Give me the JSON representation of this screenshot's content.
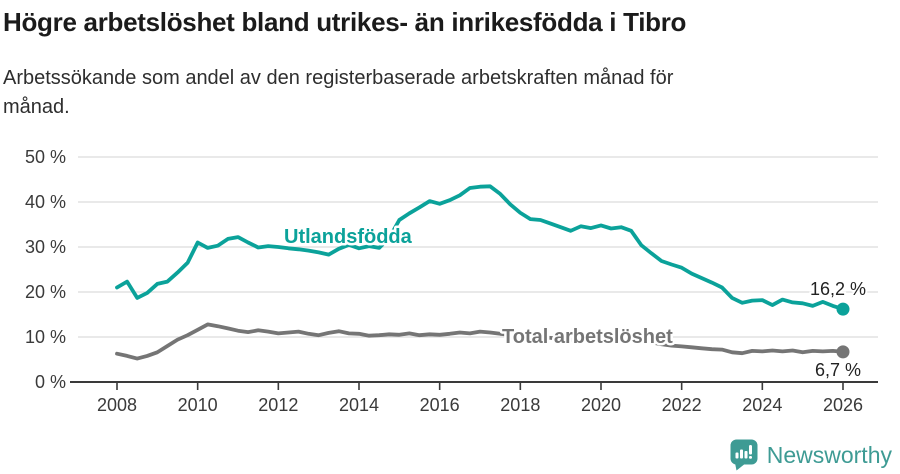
{
  "header": {
    "title": "Högre arbetslöshet bland utrikes- än inrikesfödda i Tibro",
    "subtitle_lines": [
      "Arbetssökande som andel av den registerbaserade arbetskraften månad för",
      "månad."
    ]
  },
  "chart_data": {
    "type": "line",
    "title": "",
    "xlabel": "",
    "ylabel": "",
    "y_unit": "%",
    "ylim": [
      0,
      50
    ],
    "grid": true,
    "x_start": 2008,
    "x_step": 0.25,
    "y_tick_values": [
      0,
      10,
      20,
      30,
      40,
      50
    ],
    "y_tick_labels": [
      "0 %",
      "10 %",
      "20 %",
      "30 %",
      "40 %",
      "50 %"
    ],
    "x_tick_labels": [
      "2008",
      "2010",
      "2012",
      "2014",
      "2016",
      "2018",
      "2020",
      "2022",
      "2024",
      "2026"
    ],
    "x_tick_values": [
      2008,
      2010,
      2012,
      2014,
      2016,
      2018,
      2020,
      2022,
      2024,
      2026
    ],
    "series": [
      {
        "name": "Utlandsfödda",
        "color": "#0ba29a",
        "end_value_label": "16,2 %",
        "values": [
          21.0,
          22.3,
          18.7,
          19.8,
          21.8,
          22.3,
          24.3,
          26.5,
          31.0,
          29.8,
          30.3,
          31.8,
          32.2,
          31.0,
          29.9,
          30.2,
          30.0,
          29.7,
          29.5,
          29.2,
          28.8,
          28.3,
          29.6,
          30.5,
          29.7,
          30.2,
          29.8,
          32.0,
          36.0,
          37.5,
          38.8,
          40.2,
          39.6,
          40.4,
          41.5,
          43.1,
          43.4,
          43.5,
          41.8,
          39.5,
          37.6,
          36.2,
          36.0,
          35.2,
          34.4,
          33.6,
          34.6,
          34.2,
          34.8,
          34.1,
          34.4,
          33.6,
          30.4,
          28.6,
          26.9,
          26.1,
          25.4,
          24.1,
          23.1,
          22.1,
          21.0,
          18.7,
          17.6,
          18.1,
          18.2,
          17.1,
          18.3,
          17.7,
          17.5,
          16.9,
          17.8,
          16.9,
          16.2
        ]
      },
      {
        "name": "Total arbetslöshet",
        "color": "#757575",
        "end_value_label": "6,7 %",
        "values": [
          6.3,
          5.8,
          5.2,
          5.8,
          6.6,
          8.0,
          9.4,
          10.4,
          11.6,
          12.8,
          12.4,
          11.9,
          11.4,
          11.1,
          11.5,
          11.2,
          10.8,
          11.0,
          11.2,
          10.7,
          10.4,
          10.9,
          11.3,
          10.8,
          10.7,
          10.3,
          10.4,
          10.6,
          10.5,
          10.8,
          10.4,
          10.6,
          10.5,
          10.7,
          11.0,
          10.8,
          11.2,
          11.0,
          10.7,
          10.5,
          10.4,
          10.2,
          10.0,
          9.8,
          9.6,
          9.4,
          9.3,
          9.5,
          9.8,
          10.4,
          10.2,
          9.8,
          9.3,
          8.8,
          8.4,
          8.1,
          7.9,
          7.7,
          7.5,
          7.3,
          7.2,
          6.6,
          6.4,
          6.9,
          6.8,
          7.0,
          6.8,
          7.0,
          6.6,
          6.9,
          6.8,
          6.9,
          6.7
        ]
      }
    ]
  },
  "footer": {
    "brand": "Newsworthy",
    "brand_color": "#3e9b94"
  }
}
